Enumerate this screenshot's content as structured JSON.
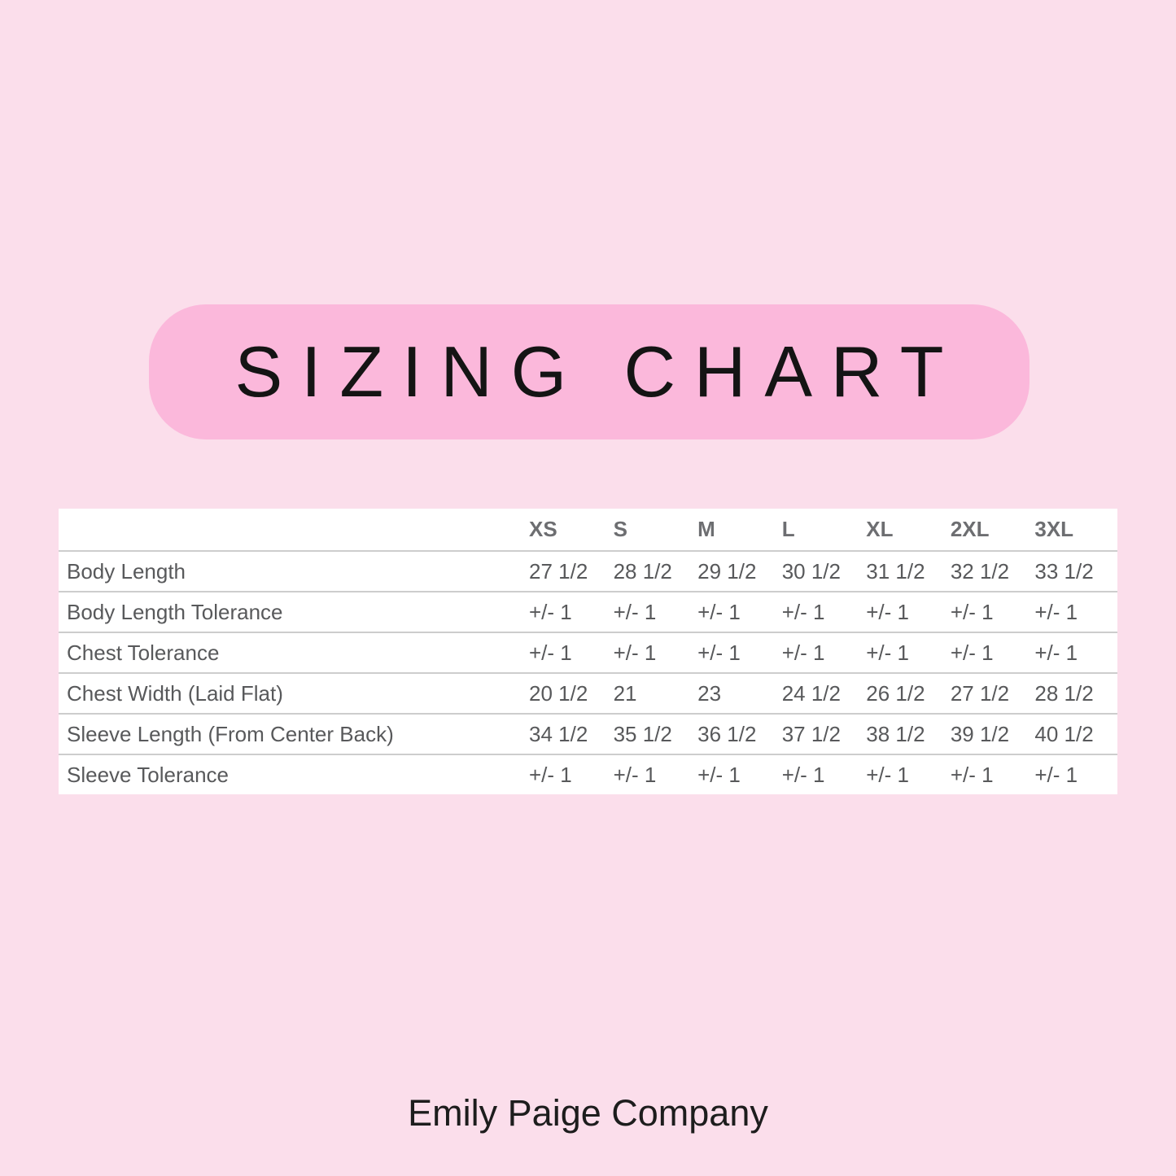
{
  "title": "SIZING CHART",
  "footer": "Emily Paige Company",
  "colors": {
    "page_background": "#fbdeeb",
    "banner_background": "#fbb8db",
    "title_text": "#141414",
    "table_background": "#ffffff",
    "table_text": "#58595b",
    "table_header_text": "#6d6e71",
    "row_divider": "#cdcdcd",
    "footer_text": "#1d1d1d"
  },
  "chart_data": {
    "type": "table",
    "title": "SIZING CHART",
    "columns": [
      "",
      "XS",
      "S",
      "M",
      "L",
      "XL",
      "2XL",
      "3XL"
    ],
    "rows": [
      [
        "Body Length",
        "27 1/2",
        "28 1/2",
        "29 1/2",
        "30 1/2",
        "31 1/2",
        "32 1/2",
        "33 1/2"
      ],
      [
        "Body Length Tolerance",
        "+/- 1",
        "+/- 1",
        "+/- 1",
        "+/- 1",
        "+/- 1",
        "+/- 1",
        "+/- 1"
      ],
      [
        "Chest Tolerance",
        "+/- 1",
        "+/- 1",
        "+/- 1",
        "+/- 1",
        "+/- 1",
        "+/- 1",
        "+/- 1"
      ],
      [
        "Chest Width (Laid Flat)",
        "20 1/2",
        "21",
        "23",
        "24 1/2",
        "26 1/2",
        "27 1/2",
        "28 1/2"
      ],
      [
        "Sleeve Length (From Center Back)",
        "34 1/2",
        "35 1/2",
        "36 1/2",
        "37 1/2",
        "38 1/2",
        "39 1/2",
        "40 1/2"
      ],
      [
        "Sleeve Tolerance",
        "+/- 1",
        "+/- 1",
        "+/- 1",
        "+/- 1",
        "+/- 1",
        "+/- 1",
        "+/- 1"
      ]
    ]
  }
}
